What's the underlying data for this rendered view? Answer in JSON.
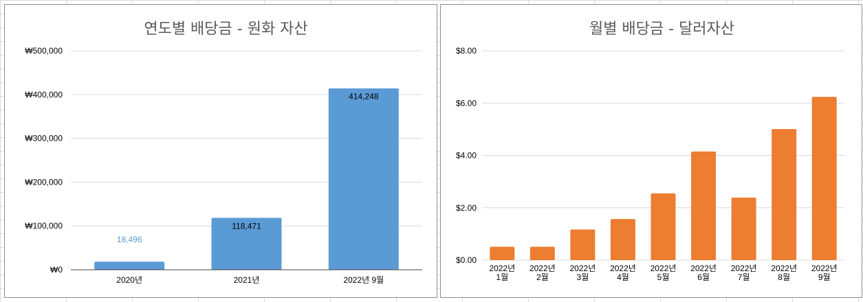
{
  "chart_data": [
    {
      "type": "bar",
      "title": "연도별 배당금 - 원화 자산",
      "categories": [
        "2020년",
        "2021년",
        "2022년 9월"
      ],
      "values": [
        18496,
        118471,
        414248
      ],
      "data_labels": [
        "18,496",
        "118,471",
        "414,248"
      ],
      "y_ticks": [
        0,
        100000,
        200000,
        300000,
        400000,
        500000
      ],
      "y_tick_labels": [
        "₩0",
        "₩100,000",
        "₩200,000",
        "₩300,000",
        "₩400,000",
        "₩500,000"
      ],
      "ylim": [
        0,
        500000
      ],
      "grid": true,
      "color": "#5b9bd5",
      "label_color_outside": "#5b9bd5",
      "label_color_inside": "#000000"
    },
    {
      "type": "bar",
      "title": "월별 배당금 - 달러자산",
      "categories": [
        [
          "2022년",
          "1월"
        ],
        [
          "2022년",
          "2월"
        ],
        [
          "2022년",
          "3월"
        ],
        [
          "2022년",
          "4월"
        ],
        [
          "2022년",
          "5월"
        ],
        [
          "2022년",
          "6월"
        ],
        [
          "2022년",
          "7월"
        ],
        [
          "2022년",
          "8월"
        ],
        [
          "2022년",
          "9월"
        ]
      ],
      "values": [
        0.51,
        0.51,
        1.17,
        1.57,
        2.55,
        4.15,
        2.39,
        5.01,
        6.24
      ],
      "y_ticks": [
        0,
        2,
        4,
        6,
        8
      ],
      "y_tick_labels": [
        "$0.00",
        "$2.00",
        "$4.00",
        "$6.00",
        "$8.00"
      ],
      "ylim": [
        0,
        8
      ],
      "grid": true,
      "color": "#ed7d31"
    }
  ]
}
